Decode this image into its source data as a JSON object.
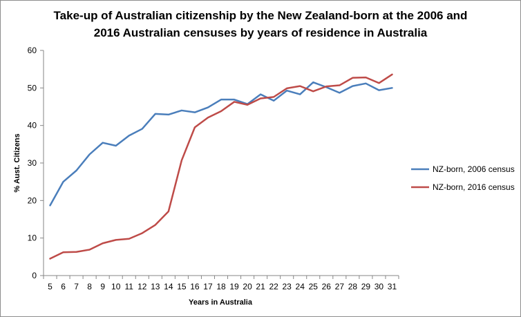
{
  "chart_data": {
    "type": "line",
    "title_line1": "Take-up of Australian citizenship by the New Zealand-born at the 2006 and",
    "title_line2": "2016 Australian censuses by years of residence in Australia",
    "xlabel": "Years in Australia",
    "ylabel": "% Aust. Citizens",
    "ylim": [
      0,
      60
    ],
    "y_ticks": [
      0,
      10,
      20,
      30,
      40,
      50,
      60
    ],
    "x": [
      5,
      6,
      7,
      8,
      9,
      10,
      11,
      12,
      13,
      14,
      15,
      16,
      17,
      18,
      19,
      20,
      21,
      22,
      23,
      24,
      25,
      26,
      27,
      28,
      29,
      30,
      31
    ],
    "grid": false,
    "legend_position": "right",
    "series": [
      {
        "name": "NZ-born, 2006 census",
        "color": "#4a7ebb",
        "values": [
          18.7,
          25.0,
          28.0,
          32.3,
          35.4,
          34.6,
          37.3,
          39.1,
          43.1,
          42.9,
          44.0,
          43.5,
          44.8,
          46.9,
          46.9,
          45.7,
          48.3,
          46.6,
          49.3,
          48.3,
          51.5,
          50.2,
          48.7,
          50.5,
          51.2,
          49.4,
          50.0
        ]
      },
      {
        "name": "NZ-born, 2016 census",
        "color": "#be4b48",
        "values": [
          4.5,
          6.2,
          6.3,
          6.9,
          8.6,
          9.5,
          9.8,
          11.3,
          13.5,
          17.1,
          30.7,
          39.5,
          42.1,
          43.8,
          46.3,
          45.5,
          47.2,
          47.6,
          49.9,
          50.5,
          49.1,
          50.4,
          50.7,
          52.7,
          52.8,
          51.3,
          53.6
        ]
      }
    ]
  }
}
